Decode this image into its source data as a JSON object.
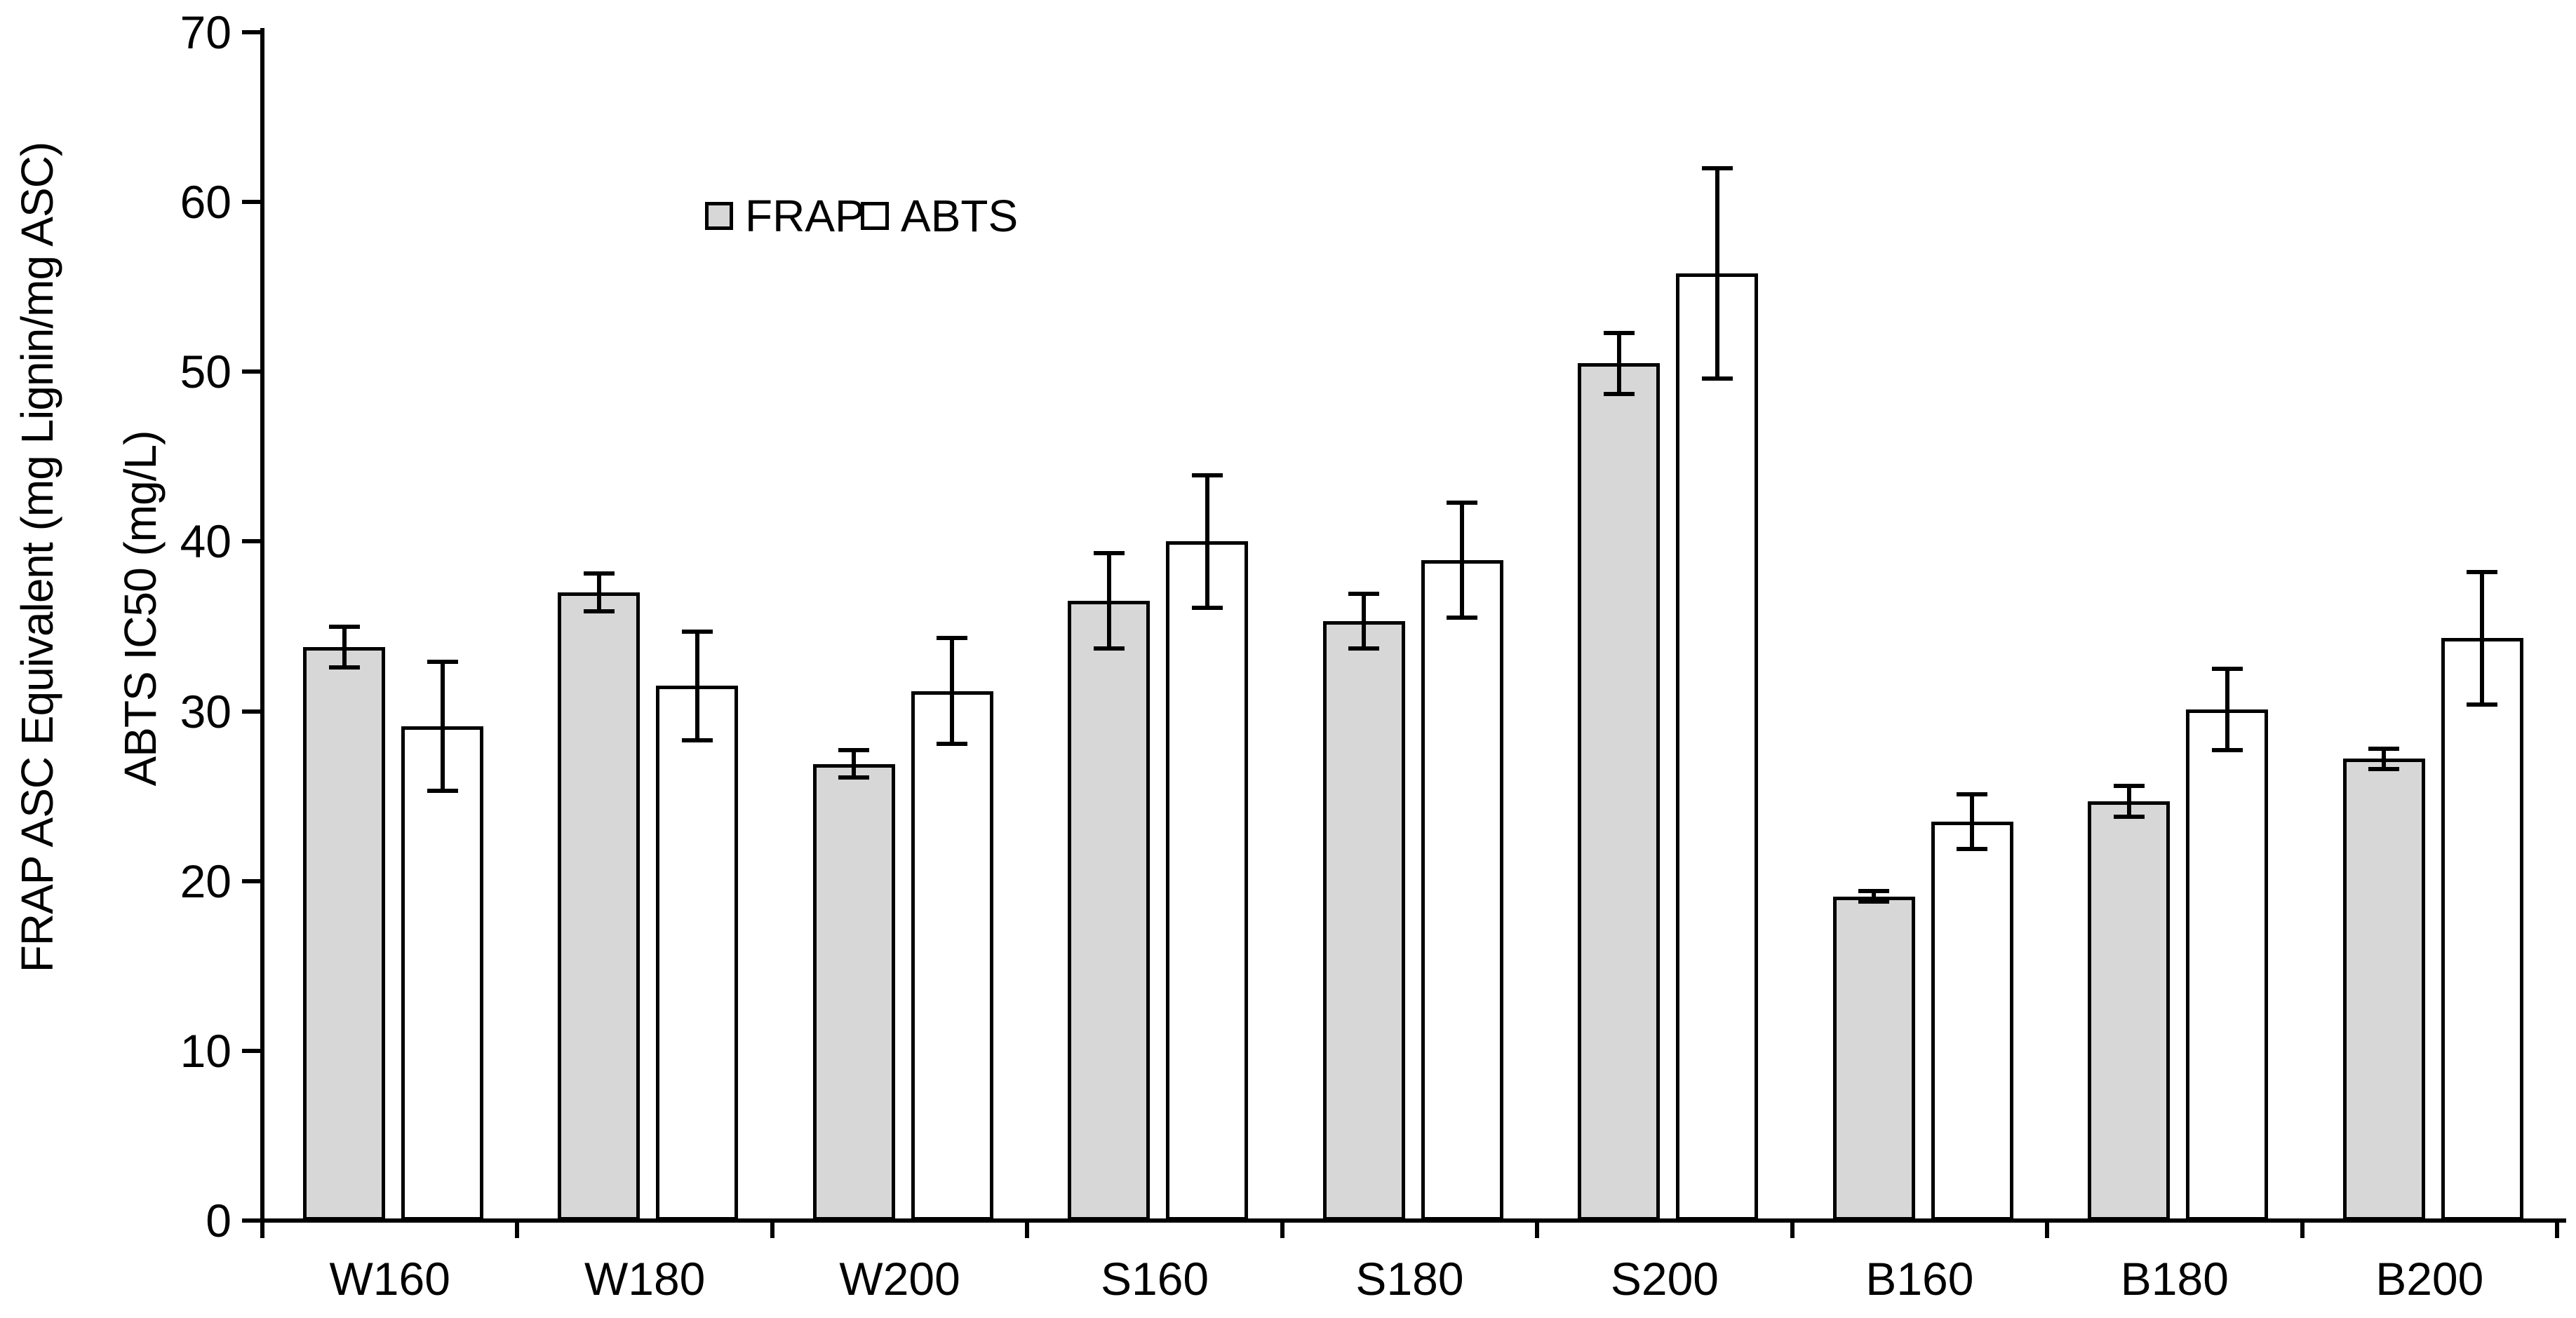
{
  "chart_data": {
    "type": "bar",
    "title": "",
    "categories": [
      "W160",
      "W180",
      "W200",
      "S160",
      "S180",
      "S200",
      "B160",
      "B180",
      "B200"
    ],
    "series": [
      {
        "name": "FRAP",
        "values": [
          33.8,
          37.0,
          26.9,
          36.5,
          35.3,
          50.5,
          19.1,
          24.7,
          27.2
        ],
        "errors": [
          1.2,
          1.1,
          0.8,
          2.8,
          1.6,
          1.8,
          0.3,
          0.9,
          0.6
        ],
        "fill": "#D7D7D7"
      },
      {
        "name": "ABTS",
        "values": [
          29.1,
          31.5,
          31.2,
          40.0,
          38.9,
          55.8,
          23.5,
          30.1,
          34.3
        ],
        "errors": [
          3.8,
          3.2,
          3.1,
          3.9,
          3.4,
          6.2,
          1.6,
          2.4,
          3.9
        ],
        "fill": "#FFFFFF"
      }
    ],
    "ylabel_line1": "FRAP ASC Equivalent (mg Lignin/mg ASC)",
    "ylabel_line2": "ABTS IC50 (mg/L)",
    "xlabel": "",
    "ylim": [
      0,
      70
    ],
    "yticks": [
      0,
      10,
      20,
      30,
      40,
      50,
      60,
      70
    ],
    "grid": false,
    "legend_position": "inside-top-left",
    "bar_outline_color": "#000000",
    "error_bar_color": "#000000",
    "axis_color": "#000000",
    "background_color": "#FFFFFF"
  }
}
